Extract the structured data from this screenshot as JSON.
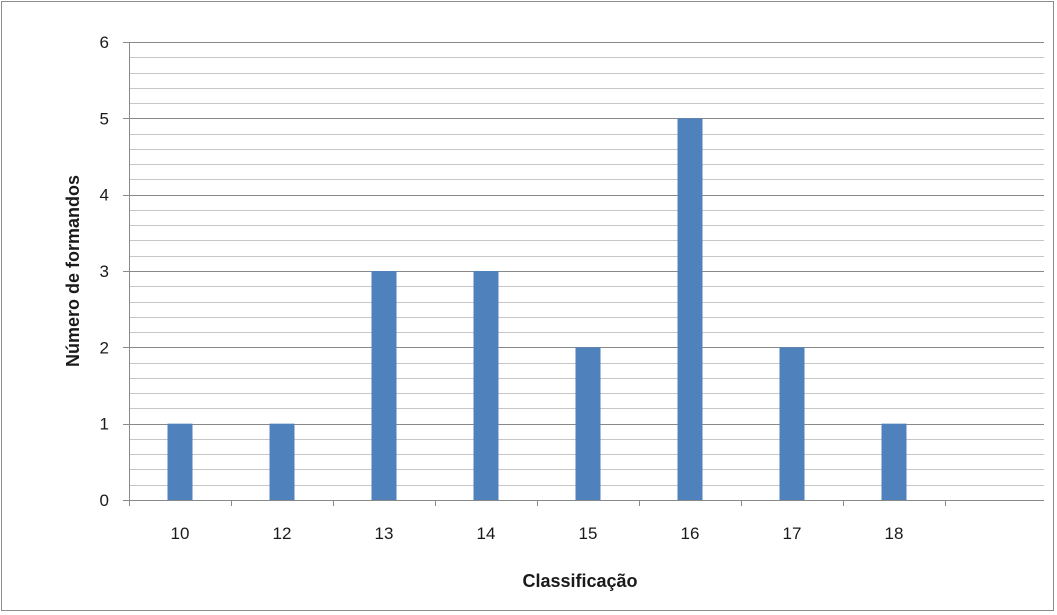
{
  "chart_data": {
    "type": "bar",
    "categories": [
      "10",
      "12",
      "13",
      "14",
      "15",
      "16",
      "17",
      "18"
    ],
    "series": [
      {
        "values": [
          1,
          1,
          3,
          3,
          2,
          5,
          2,
          1
        ]
      }
    ],
    "xlabel": "Classificação",
    "ylabel": "Número de formandos",
    "ylim": [
      0,
      6
    ],
    "yticks": [
      "0",
      "1",
      "2",
      "3",
      "4",
      "5",
      "6"
    ],
    "major_gridlines": true,
    "minor_gridlines": true,
    "legend": "none",
    "bar_color": "#4f81bd",
    "gridline_color": "#898989"
  }
}
